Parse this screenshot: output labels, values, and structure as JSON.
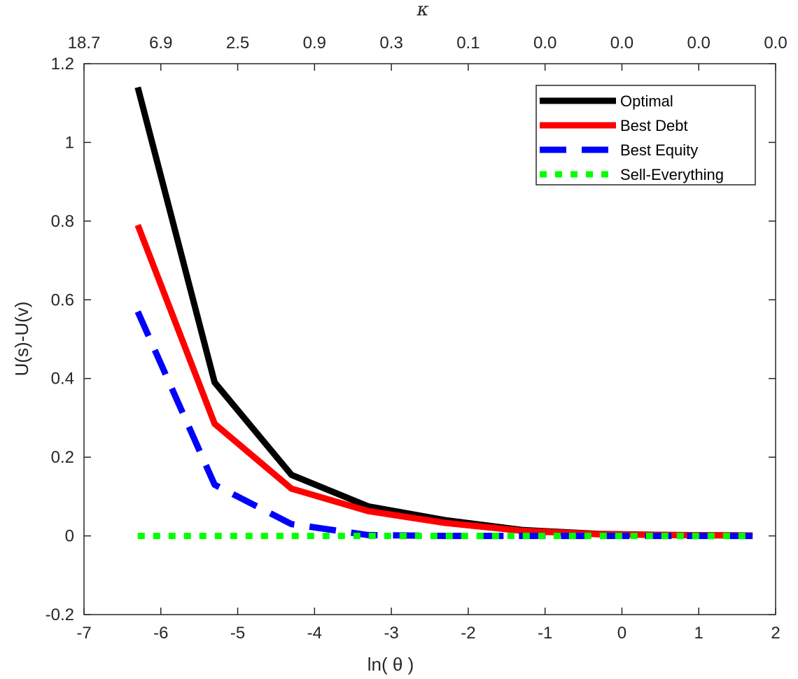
{
  "chart_data": {
    "type": "line",
    "xlabel": "ln( θ )",
    "ylabel": "U(s)-U(v)",
    "top_axis_label": "κ",
    "xlim": [
      -7,
      2
    ],
    "ylim": [
      -0.2,
      1.2
    ],
    "x_ticks": [
      -7,
      -6,
      -5,
      -4,
      -3,
      -2,
      -1,
      0,
      1,
      2
    ],
    "x_tick_labels": [
      "-7",
      "-6",
      "-5",
      "-4",
      "-3",
      "-2",
      "-1",
      "0",
      "1",
      "2"
    ],
    "y_ticks": [
      -0.2,
      0,
      0.2,
      0.4,
      0.6,
      0.8,
      1,
      1.2
    ],
    "y_tick_labels": [
      "-0.2",
      "0",
      "0.2",
      "0.4",
      "0.6",
      "0.8",
      "1",
      "1.2"
    ],
    "top_ticks": [
      -7,
      -6,
      -5,
      -4,
      -3,
      -2,
      -1,
      0,
      1,
      2
    ],
    "top_tick_labels": [
      "18.7",
      "6.9",
      "2.5",
      "0.9",
      "0.3",
      "0.1",
      "0.0",
      "0.0",
      "0.0",
      "0.0"
    ],
    "legend_position": "top-right",
    "grid": false,
    "series": [
      {
        "name": "Optimal",
        "style": "solid",
        "color": "#000000",
        "x": [
          -6.3,
          -5.3,
          -4.3,
          -3.3,
          -2.3,
          -1.3,
          -0.3,
          0.7,
          1.7
        ],
        "y": [
          1.14,
          0.39,
          0.155,
          0.075,
          0.04,
          0.015,
          0.005,
          0.002,
          0.001
        ]
      },
      {
        "name": "Best Debt",
        "style": "solid",
        "color": "#ff0000",
        "x": [
          -6.3,
          -5.3,
          -4.3,
          -3.3,
          -2.3,
          -1.3,
          -0.3,
          0.7,
          1.7
        ],
        "y": [
          0.79,
          0.285,
          0.12,
          0.063,
          0.033,
          0.013,
          0.004,
          0.002,
          0.001
        ]
      },
      {
        "name": "Best Equity",
        "style": "dashed",
        "color": "#0000ff",
        "x": [
          -6.3,
          -5.3,
          -4.3,
          -3.3,
          -2.3,
          -1.3,
          -0.3,
          0.7,
          1.7
        ],
        "y": [
          0.57,
          0.13,
          0.03,
          0.002,
          0.0,
          0.0,
          0.0,
          0.0,
          0.0
        ]
      },
      {
        "name": "Sell-Everything",
        "style": "dotted",
        "color": "#00ff00",
        "x": [
          -6.3,
          -5.3,
          -4.3,
          -3.3,
          -2.3,
          -1.3,
          -0.3,
          0.7,
          1.7
        ],
        "y": [
          0.0,
          0.0,
          0.0,
          0.0,
          0.0,
          0.0,
          0.0,
          0.0,
          0.0
        ]
      }
    ]
  }
}
